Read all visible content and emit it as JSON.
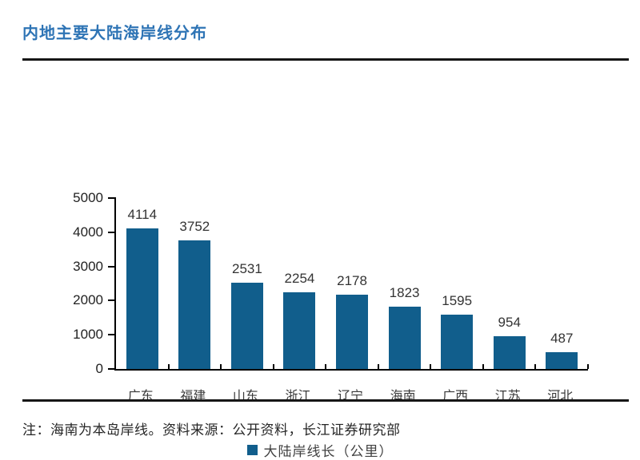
{
  "page": {
    "title": "内地主要大陆海岸线分布",
    "note": "注：海南为本岛岸线。资料来源：公开资料，长江证券研究部"
  },
  "colors": {
    "title_accent": "#2e74b5",
    "bar": "#115e8c",
    "rule": "#161616",
    "text": "#333333"
  },
  "chart_data": {
    "type": "bar",
    "title": "内地主要大陆海岸线分布",
    "categories": [
      "广东",
      "福建",
      "山东",
      "浙江",
      "辽宁",
      "海南",
      "广西",
      "江苏",
      "河北"
    ],
    "values": [
      4114,
      3752,
      2531,
      2254,
      2178,
      1823,
      1595,
      954,
      487
    ],
    "legend_label": "大陆岸线长（公里）",
    "legend_position": "bottom-center",
    "xlabel": "",
    "ylabel": "",
    "ylim": [
      0,
      5000
    ],
    "yticks": [
      0,
      1000,
      2000,
      3000,
      4000,
      5000
    ],
    "grid": false,
    "bar_color": "#115e8c",
    "data_labels": true
  }
}
